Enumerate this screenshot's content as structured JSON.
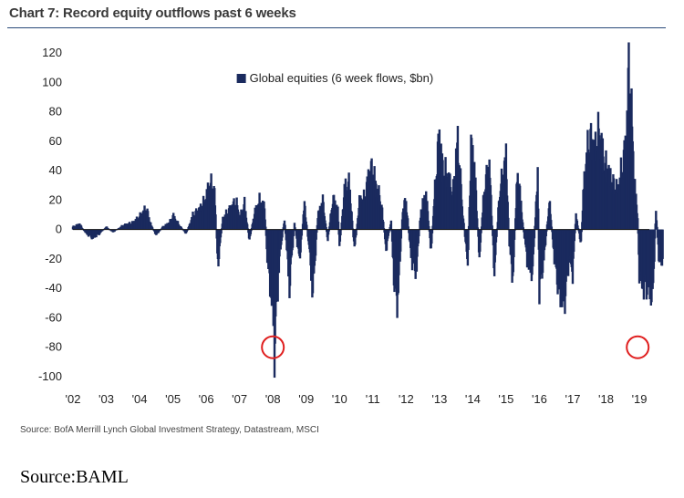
{
  "title": "Chart 7: Record equity outflows past 6 weeks",
  "source_note": "Source:  BofA Merrill Lynch Global Investment Strategy, Datastream, MSCI",
  "footer_source": "Source:BAML",
  "colors": {
    "series": "#1a2a5e",
    "title_rule": "#2a4a7a",
    "highlight": "#e02020"
  },
  "chart_data": {
    "type": "bar",
    "title": "Chart 7: Record equity outflows past 6 weeks",
    "xlabel": "",
    "ylabel": "",
    "ylim": [
      -100,
      120
    ],
    "yticks": [
      120,
      100,
      80,
      60,
      40,
      20,
      0,
      -20,
      -40,
      -60,
      -80,
      -100
    ],
    "xlim": [
      2002,
      2019.3
    ],
    "xtick_labels": [
      "'02",
      "'03",
      "'04",
      "'05",
      "'06",
      "'07",
      "'08",
      "'09",
      "'10",
      "'11",
      "'12",
      "'13",
      "'14",
      "'15",
      "'16",
      "'17",
      "'18",
      "'19"
    ],
    "legend": {
      "position": "top-center"
    },
    "grid": false,
    "highlights": [
      {
        "x": 2008.0,
        "y": -80
      },
      {
        "x": 2018.95,
        "y": -80
      }
    ],
    "series": [
      {
        "name": "Global equities (6 week flows, $bn)",
        "points": [
          [
            2002.0,
            2
          ],
          [
            2002.2,
            4
          ],
          [
            2002.4,
            -3
          ],
          [
            2002.6,
            -6
          ],
          [
            2002.8,
            -3
          ],
          [
            2003.0,
            2
          ],
          [
            2003.2,
            -2
          ],
          [
            2003.5,
            3
          ],
          [
            2003.8,
            5
          ],
          [
            2004.0,
            9
          ],
          [
            2004.2,
            15
          ],
          [
            2004.35,
            3
          ],
          [
            2004.5,
            -4
          ],
          [
            2004.7,
            2
          ],
          [
            2004.9,
            5
          ],
          [
            2005.0,
            10
          ],
          [
            2005.2,
            3
          ],
          [
            2005.4,
            -3
          ],
          [
            2005.6,
            10
          ],
          [
            2005.8,
            14
          ],
          [
            2006.0,
            22
          ],
          [
            2006.1,
            33
          ],
          [
            2006.25,
            26
          ],
          [
            2006.35,
            -25
          ],
          [
            2006.5,
            8
          ],
          [
            2006.7,
            14
          ],
          [
            2006.9,
            20
          ],
          [
            2007.0,
            8
          ],
          [
            2007.15,
            18
          ],
          [
            2007.3,
            -8
          ],
          [
            2007.45,
            12
          ],
          [
            2007.6,
            20
          ],
          [
            2007.75,
            16
          ],
          [
            2007.85,
            -26
          ],
          [
            2008.0,
            -55
          ],
          [
            2008.05,
            -82
          ],
          [
            2008.2,
            -20
          ],
          [
            2008.35,
            8
          ],
          [
            2008.5,
            -40
          ],
          [
            2008.65,
            5
          ],
          [
            2008.8,
            -22
          ],
          [
            2008.95,
            18
          ],
          [
            2009.1,
            -15
          ],
          [
            2009.2,
            -45
          ],
          [
            2009.35,
            10
          ],
          [
            2009.5,
            20
          ],
          [
            2009.65,
            -8
          ],
          [
            2009.8,
            22
          ],
          [
            2009.95,
            14
          ],
          [
            2010.0,
            -14
          ],
          [
            2010.15,
            28
          ],
          [
            2010.3,
            32
          ],
          [
            2010.45,
            -15
          ],
          [
            2010.6,
            20
          ],
          [
            2010.75,
            22
          ],
          [
            2010.9,
            40
          ],
          [
            2011.0,
            42
          ],
          [
            2011.1,
            30
          ],
          [
            2011.25,
            20
          ],
          [
            2011.4,
            -14
          ],
          [
            2011.55,
            6
          ],
          [
            2011.65,
            -40
          ],
          [
            2011.75,
            -50
          ],
          [
            2011.9,
            15
          ],
          [
            2012.0,
            20
          ],
          [
            2012.15,
            -20
          ],
          [
            2012.3,
            -30
          ],
          [
            2012.45,
            15
          ],
          [
            2012.6,
            25
          ],
          [
            2012.75,
            -15
          ],
          [
            2012.9,
            40
          ],
          [
            2013.0,
            65
          ],
          [
            2013.1,
            42
          ],
          [
            2013.25,
            38
          ],
          [
            2013.4,
            24
          ],
          [
            2013.55,
            62
          ],
          [
            2013.7,
            12
          ],
          [
            2013.85,
            -25
          ],
          [
            2013.95,
            58
          ],
          [
            2014.05,
            45
          ],
          [
            2014.2,
            -20
          ],
          [
            2014.35,
            30
          ],
          [
            2014.5,
            45
          ],
          [
            2014.65,
            -30
          ],
          [
            2014.8,
            25
          ],
          [
            2015.0,
            50
          ],
          [
            2015.1,
            -10
          ],
          [
            2015.2,
            -35
          ],
          [
            2015.35,
            42
          ],
          [
            2015.5,
            5
          ],
          [
            2015.65,
            -25
          ],
          [
            2015.8,
            -30
          ],
          [
            2015.95,
            42
          ],
          [
            2016.0,
            -42
          ],
          [
            2016.15,
            -18
          ],
          [
            2016.3,
            20
          ],
          [
            2016.45,
            -20
          ],
          [
            2016.6,
            -45
          ],
          [
            2016.75,
            -50
          ],
          [
            2016.9,
            -20
          ],
          [
            2017.0,
            -30
          ],
          [
            2017.1,
            10
          ],
          [
            2017.25,
            -10
          ],
          [
            2017.35,
            38
          ],
          [
            2017.5,
            64
          ],
          [
            2017.65,
            55
          ],
          [
            2017.8,
            68
          ],
          [
            2017.95,
            45
          ],
          [
            2018.05,
            42
          ],
          [
            2018.2,
            32
          ],
          [
            2018.35,
            28
          ],
          [
            2018.5,
            45
          ],
          [
            2018.6,
            60
          ],
          [
            2018.7,
            118
          ],
          [
            2018.8,
            60
          ],
          [
            2018.85,
            38
          ],
          [
            2018.9,
            20
          ],
          [
            2018.95,
            10
          ],
          [
            2019.0,
            -30
          ],
          [
            2019.1,
            -40
          ],
          [
            2019.2,
            -40
          ],
          [
            2019.3,
            -40
          ],
          [
            2019.4,
            -50
          ],
          [
            2019.5,
            15
          ],
          [
            2019.6,
            -25
          ],
          [
            2019.7,
            -20
          ]
        ]
      }
    ]
  }
}
